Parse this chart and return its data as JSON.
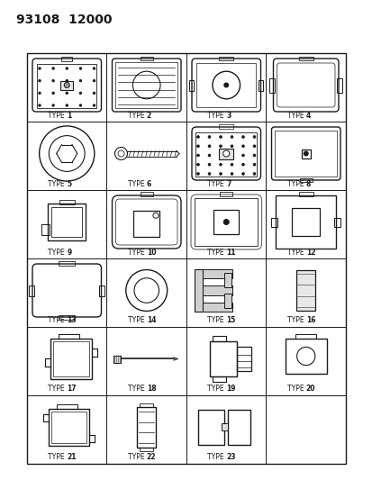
{
  "title": "93108  12000",
  "background": "#ffffff",
  "line_color": "#1a1a1a",
  "grid_rows": 6,
  "grid_cols": 4,
  "types": [
    "TYPE 1",
    "TYPE 2",
    "TYPE 3",
    "TYPE 4",
    "TYPE 5",
    "TYPE 6",
    "TYPE 7",
    "TYPE 8",
    "TYPE 9",
    "TYPE 10",
    "TYPE 11",
    "TYPE 12",
    "TYPE 13",
    "TYPE 14",
    "TYPE 15",
    "TYPE 16",
    "TYPE 17",
    "TYPE 18",
    "TYPE 19",
    "TYPE 20",
    "TYPE 21",
    "TYPE 22",
    "TYPE 23",
    ""
  ],
  "header_fontsize": 10,
  "label_fontsize": 5.5
}
